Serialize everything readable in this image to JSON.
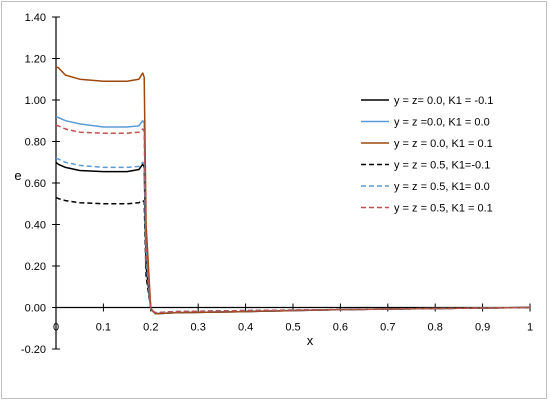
{
  "chart_data": {
    "type": "line",
    "xlabel": "x",
    "ylabel": "e",
    "xlim": [
      0,
      1
    ],
    "ylim": [
      -0.2,
      1.4
    ],
    "x_ticks": [
      0,
      0.1,
      0.2,
      0.3,
      0.4,
      0.5,
      0.6,
      0.7,
      0.8,
      0.9,
      1
    ],
    "x_tick_labels": [
      "0",
      "0.1",
      "0.2",
      "0.3",
      "0.4",
      "0.5",
      "0.6",
      "0.7",
      "0.8",
      "0.9",
      "1"
    ],
    "y_ticks": [
      -0.2,
      0,
      0.2,
      0.4,
      0.6,
      0.8,
      1.0,
      1.2,
      1.4
    ],
    "y_tick_labels": [
      "-0.20",
      "0.00",
      "0.20",
      "0.40",
      "0.60",
      "0.80",
      "1.00",
      "1.20",
      "1.40"
    ],
    "grid": false,
    "legend_position": "right",
    "series": [
      {
        "name": "y = z= 0.0, K1 = -0.1",
        "color": "#000000",
        "dash": "solid",
        "x": [
          0,
          0.005,
          0.02,
          0.05,
          0.1,
          0.15,
          0.175,
          0.183,
          0.186,
          0.19,
          0.2,
          0.205,
          0.21,
          0.25,
          0.4,
          0.6,
          0.8,
          1.0
        ],
        "y": [
          0.7,
          0.69,
          0.675,
          0.66,
          0.655,
          0.655,
          0.665,
          0.69,
          0.68,
          0.2,
          -0.005,
          -0.02,
          -0.03,
          -0.025,
          -0.02,
          -0.01,
          -0.005,
          0.0
        ]
      },
      {
        "name": "y = z =0.0, K1 = 0.0",
        "color": "#5b9bd5",
        "dash": "solid",
        "x": [
          0,
          0.005,
          0.02,
          0.05,
          0.1,
          0.15,
          0.175,
          0.183,
          0.186,
          0.19,
          0.2,
          0.205,
          0.21,
          0.25,
          0.4,
          0.6,
          0.8,
          1.0
        ],
        "y": [
          0.92,
          0.915,
          0.9,
          0.885,
          0.87,
          0.87,
          0.875,
          0.9,
          0.89,
          0.3,
          -0.005,
          -0.02,
          -0.03,
          -0.025,
          -0.02,
          -0.01,
          -0.005,
          0.0
        ]
      },
      {
        "name": "y = z = 0.0, K1 = 0.1",
        "color": "#9e480e",
        "dash": "solid",
        "x": [
          0,
          0.005,
          0.02,
          0.05,
          0.1,
          0.15,
          0.175,
          0.183,
          0.186,
          0.19,
          0.2,
          0.205,
          0.21,
          0.25,
          0.4,
          0.6,
          0.8,
          1.0
        ],
        "y": [
          1.16,
          1.155,
          1.12,
          1.1,
          1.09,
          1.09,
          1.1,
          1.13,
          1.11,
          0.4,
          -0.005,
          -0.02,
          -0.03,
          -0.025,
          -0.02,
          -0.01,
          -0.005,
          0.0
        ]
      },
      {
        "name": "y = z = 0.5, K1=-0.1",
        "color": "#000000",
        "dash": "dashed",
        "x": [
          0,
          0.005,
          0.02,
          0.05,
          0.1,
          0.15,
          0.175,
          0.183,
          0.186,
          0.19,
          0.2,
          0.205,
          0.21,
          0.25,
          0.4,
          0.6,
          0.8,
          1.0
        ],
        "y": [
          0.53,
          0.525,
          0.515,
          0.505,
          0.5,
          0.5,
          0.505,
          0.515,
          0.51,
          0.15,
          -0.005,
          -0.02,
          -0.025,
          -0.02,
          -0.015,
          -0.01,
          -0.005,
          0.0
        ]
      },
      {
        "name": "y = z = 0.5, K1= 0.0",
        "color": "#5b9bd5",
        "dash": "dashed",
        "x": [
          0,
          0.005,
          0.02,
          0.05,
          0.1,
          0.15,
          0.175,
          0.183,
          0.186,
          0.19,
          0.2,
          0.205,
          0.21,
          0.25,
          0.4,
          0.6,
          0.8,
          1.0
        ],
        "y": [
          0.72,
          0.715,
          0.7,
          0.685,
          0.675,
          0.675,
          0.68,
          0.7,
          0.69,
          0.22,
          -0.005,
          -0.02,
          -0.025,
          -0.02,
          -0.015,
          -0.01,
          -0.005,
          0.0
        ]
      },
      {
        "name": "y = z = 0.5, K1 = 0.1",
        "color": "#c0504d",
        "dash": "dashed",
        "x": [
          0,
          0.005,
          0.02,
          0.05,
          0.1,
          0.15,
          0.175,
          0.183,
          0.186,
          0.19,
          0.2,
          0.205,
          0.21,
          0.25,
          0.4,
          0.6,
          0.8,
          1.0
        ],
        "y": [
          0.88,
          0.875,
          0.86,
          0.845,
          0.84,
          0.84,
          0.845,
          0.86,
          0.85,
          0.28,
          -0.005,
          -0.02,
          -0.025,
          -0.02,
          -0.015,
          -0.01,
          -0.005,
          0.0
        ]
      }
    ]
  }
}
